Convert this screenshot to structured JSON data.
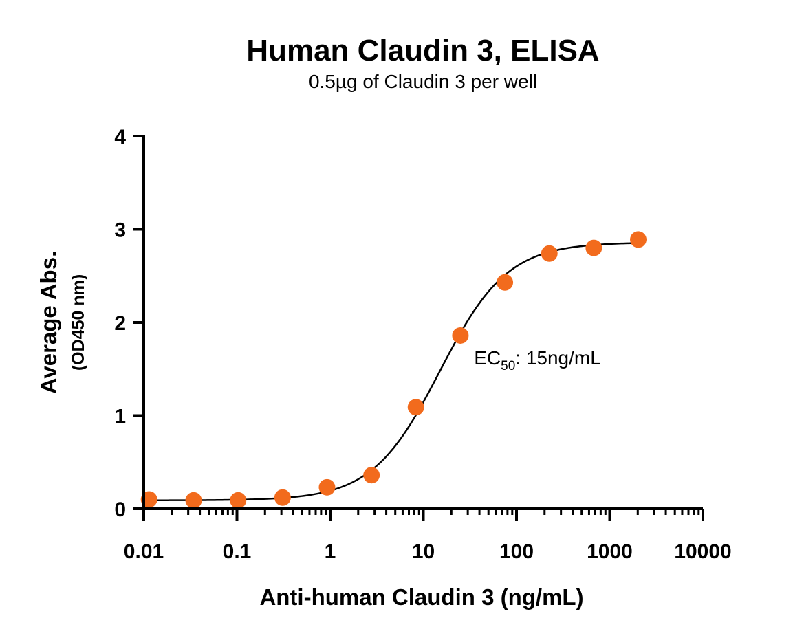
{
  "chart_data": {
    "type": "scatter",
    "title": "Human Claudin 3, ELISA",
    "subtitle": "0.5µg of Claudin 3 per well",
    "xlabel": "Anti-human Claudin 3 (ng/mL)",
    "ylabel": "Average Abs.",
    "ylabel_sub": "(OD450 nm)",
    "x_scale": "log",
    "xlim": [
      0.01,
      10000
    ],
    "ylim": [
      0,
      4
    ],
    "x_ticks": [
      0.01,
      0.1,
      1,
      10,
      100,
      1000,
      10000
    ],
    "x_tick_labels": [
      "0.01",
      "0.1",
      "1",
      "10",
      "100",
      "1000",
      "10000"
    ],
    "y_ticks": [
      0,
      1,
      2,
      3,
      4
    ],
    "y_tick_labels": [
      "0",
      "1",
      "2",
      "3",
      "4"
    ],
    "grid": false,
    "point_color": "#f26b1d",
    "line_color": "#000000",
    "series": [
      {
        "x": [
          0.0114,
          0.0343,
          0.103,
          0.309,
          0.926,
          2.78,
          8.33,
          25,
          75,
          225,
          675,
          2025
        ],
        "y": [
          0.1,
          0.09,
          0.09,
          0.12,
          0.23,
          0.36,
          1.09,
          1.86,
          2.43,
          2.74,
          2.8,
          2.89
        ]
      }
    ],
    "fit_curve": {
      "model": "4PL",
      "bottom": 0.09,
      "top": 2.86,
      "ec50": 15,
      "hill": 1.2
    },
    "annotation": {
      "prefix": "EC",
      "subscript": "50",
      "suffix": ": 15ng/mL",
      "x": 35,
      "y": 1.55
    }
  }
}
